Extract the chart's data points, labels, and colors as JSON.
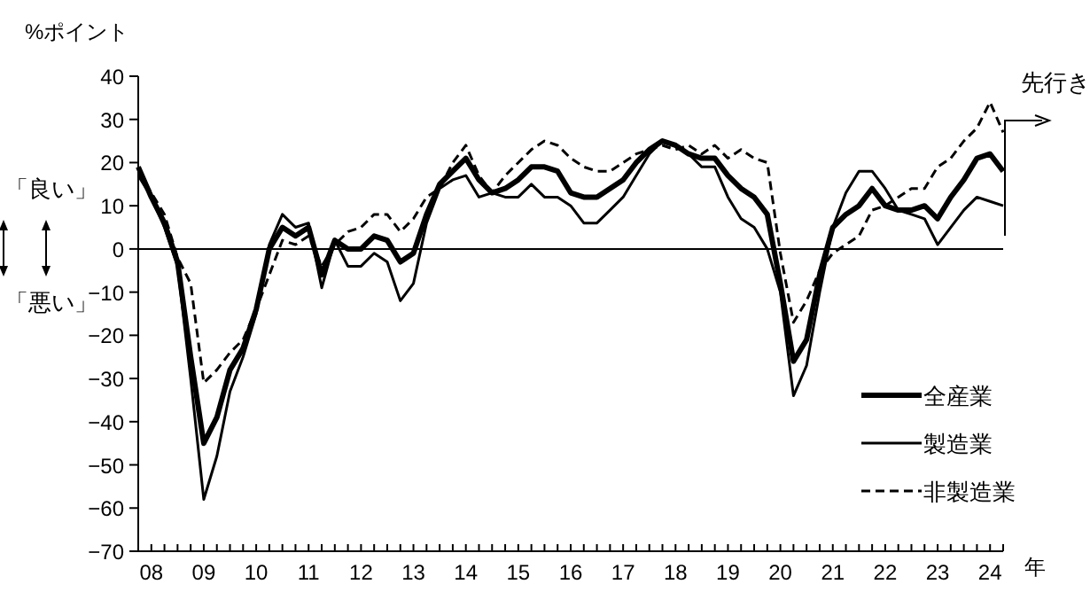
{
  "chart_data": {
    "type": "line",
    "ylabel": "%ポイント",
    "xlabel": "年",
    "annotations": [
      "「良い」",
      "「悪い」",
      "先行き"
    ],
    "categories": [
      null,
      "08",
      null,
      null,
      null,
      "09",
      null,
      null,
      null,
      "10",
      null,
      null,
      null,
      "11",
      null,
      null,
      null,
      "12",
      null,
      null,
      null,
      "13",
      null,
      null,
      null,
      "14",
      null,
      null,
      null,
      "15",
      null,
      null,
      null,
      "16",
      null,
      null,
      null,
      "17",
      null,
      null,
      null,
      "18",
      null,
      null,
      null,
      "19",
      null,
      null,
      null,
      "20",
      null,
      null,
      null,
      "21",
      null,
      null,
      null,
      "22",
      null,
      null,
      null,
      "23",
      null,
      null,
      null,
      "24",
      null
    ],
    "series": [
      {
        "name": "全産業",
        "color": "#000000",
        "line_style": "solid",
        "values": [
          19,
          12,
          6,
          -3,
          -25,
          -45,
          -39,
          -28,
          -23,
          -14,
          0,
          5,
          3,
          5,
          -6,
          2,
          0,
          0,
          3,
          2,
          -3,
          -1,
          8,
          15,
          18,
          21,
          16,
          13,
          14,
          16,
          19,
          19,
          18,
          13,
          12,
          12,
          14,
          16,
          20,
          23,
          25,
          24,
          22,
          21,
          21,
          17,
          14,
          12,
          8,
          -8,
          -26,
          -21,
          -6,
          5,
          8,
          10,
          14,
          10,
          9,
          9,
          10,
          7,
          12,
          16,
          21,
          22,
          18
        ]
      },
      {
        "name": "製造業",
        "color": "#000000",
        "line_style": "solid",
        "values": [
          17,
          12,
          5,
          -4,
          -30,
          -58,
          -48,
          -33,
          -25,
          -15,
          1,
          8,
          5,
          6,
          -9,
          2,
          -4,
          -4,
          -1,
          -3,
          -12,
          -8,
          6,
          14,
          16,
          17,
          12,
          13,
          12,
          12,
          15,
          12,
          12,
          10,
          6,
          6,
          9,
          12,
          17,
          22,
          25,
          24,
          22,
          19,
          19,
          12,
          7,
          5,
          0,
          -10,
          -34,
          -27,
          -10,
          5,
          13,
          18,
          18,
          14,
          9,
          8,
          7,
          1,
          5,
          9,
          12,
          11,
          10
        ]
      },
      {
        "name": "非製造業",
        "color": "#000000",
        "line_style": "dashed",
        "values": [
          18,
          13,
          8,
          -2,
          -8,
          -31,
          -28,
          -24,
          -21,
          -14,
          -6,
          2,
          1,
          3,
          -4,
          1,
          4,
          5,
          8,
          8,
          4,
          7,
          12,
          14,
          20,
          24,
          17,
          13,
          17,
          20,
          23,
          25,
          24,
          21,
          19,
          18,
          18,
          20,
          22,
          23,
          24,
          23,
          24,
          22,
          24,
          21,
          23,
          21,
          20,
          -1,
          -17,
          -12,
          -5,
          -1,
          1,
          3,
          9,
          10,
          12,
          14,
          14,
          19,
          21,
          25,
          28,
          34,
          27
        ]
      }
    ],
    "ylim": [
      -70,
      40
    ],
    "yticks": [
      -70,
      -60,
      -50,
      -40,
      -30,
      -20,
      -10,
      0,
      10,
      20,
      30,
      40
    ],
    "ref_lines": [
      {
        "axis": "y",
        "value": 0,
        "color": "#000000"
      }
    ],
    "grid": false,
    "legend": "bottom right",
    "marker": "none"
  }
}
